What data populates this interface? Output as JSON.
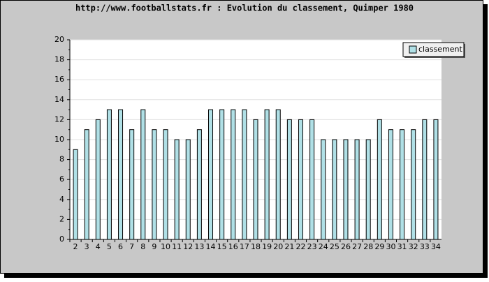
{
  "chart_data": {
    "type": "bar",
    "title": "http://www.footballstats.fr : Evolution du classement, Quimper 1980",
    "categories": [
      "2",
      "3",
      "4",
      "5",
      "6",
      "7",
      "8",
      "9",
      "10",
      "11",
      "12",
      "13",
      "14",
      "15",
      "16",
      "17",
      "18",
      "19",
      "20",
      "21",
      "22",
      "23",
      "24",
      "25",
      "26",
      "27",
      "28",
      "29",
      "30",
      "31",
      "32",
      "33",
      "34"
    ],
    "series": [
      {
        "name": "classement",
        "color": "#b0e0e6",
        "values": [
          9,
          11,
          12,
          13,
          13,
          11,
          13,
          11,
          11,
          10,
          10,
          11,
          13,
          13,
          13,
          13,
          12,
          13,
          13,
          12,
          12,
          12,
          10,
          10,
          10,
          10,
          10,
          12,
          11,
          11,
          11,
          12,
          12
        ]
      }
    ],
    "ylim": [
      0,
      20
    ],
    "yticks": [
      0,
      2,
      4,
      6,
      8,
      10,
      12,
      14,
      16,
      18,
      20
    ],
    "grid": true,
    "legend": "upper right"
  }
}
